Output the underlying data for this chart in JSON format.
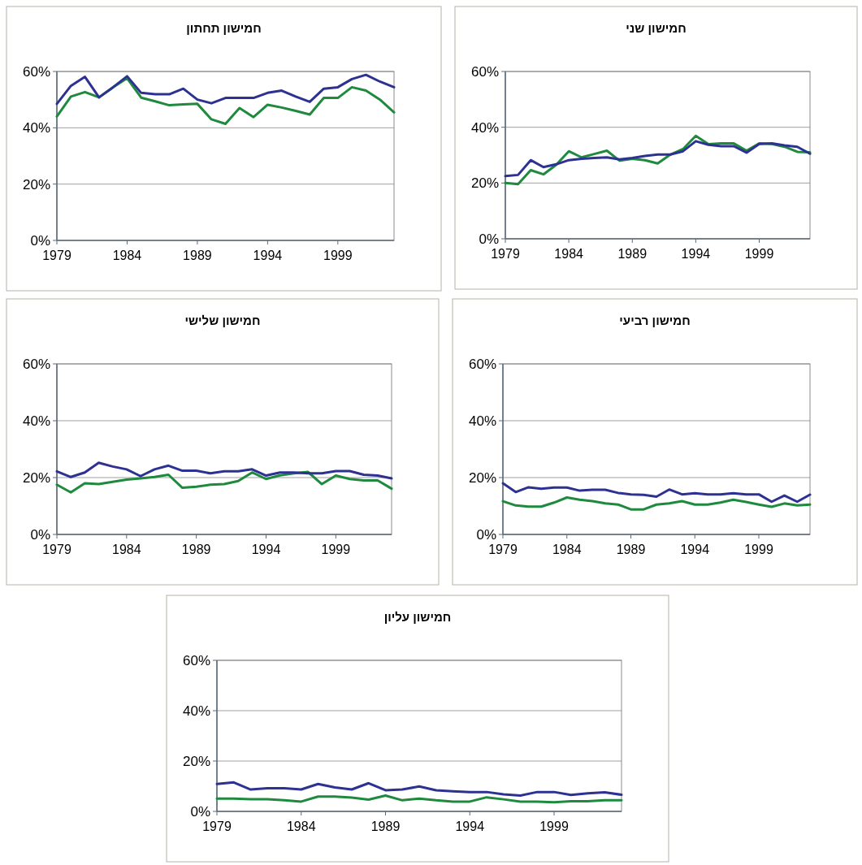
{
  "chart_data": [
    {
      "type": "line",
      "title": "חמישון תחתון",
      "x": [
        1979,
        1980,
        1981,
        1982,
        1983,
        1984,
        1985,
        1986,
        1987,
        1988,
        1989,
        1990,
        1991,
        1992,
        1993,
        1994,
        1995,
        1996,
        1997,
        1998,
        1999,
        2000,
        2001,
        2002,
        2003
      ],
      "xlim": [
        1979,
        2003
      ],
      "xticks": [
        1979,
        1984,
        1989,
        1994,
        1999
      ],
      "ylim": [
        0,
        60
      ],
      "yticks": [
        {
          "value": 0,
          "label": "0%"
        },
        {
          "value": 20,
          "label": "20%"
        },
        {
          "value": 40,
          "label": "40%"
        },
        {
          "value": 60,
          "label": "60%"
        }
      ],
      "grid": "y",
      "series": [
        {
          "color": "#1f8a3e",
          "values": [
            44,
            51.1,
            52.7,
            50.8,
            54.4,
            57.6,
            50.7,
            49.4,
            48,
            48.3,
            48.5,
            43,
            41.4,
            47,
            43.8,
            48.2,
            47.2,
            46,
            44.7,
            50.6,
            50.6,
            54.4,
            53.2,
            50,
            45.5
          ]
        },
        {
          "color": "#2d3192",
          "values": [
            48.5,
            54.9,
            58.1,
            50.8,
            54.4,
            58.3,
            52.4,
            51.9,
            51.9,
            53.9,
            50,
            48.7,
            50.6,
            50.6,
            50.6,
            52.4,
            53.2,
            51.1,
            49.2,
            53.9,
            54.4,
            57.3,
            58.8,
            56.4,
            54.4
          ]
        }
      ]
    },
    {
      "type": "line",
      "title": "חמישון שני",
      "x": [
        1979,
        1980,
        1981,
        1982,
        1983,
        1984,
        1985,
        1986,
        1987,
        1988,
        1989,
        1990,
        1991,
        1992,
        1993,
        1994,
        1995,
        1996,
        1997,
        1998,
        1999,
        2000,
        2001,
        2002,
        2003
      ],
      "xlim": [
        1979,
        2003
      ],
      "xticks": [
        1979,
        1984,
        1989,
        1994,
        1999
      ],
      "ylim": [
        0,
        60
      ],
      "yticks": [
        {
          "value": 0,
          "label": "0%"
        },
        {
          "value": 20,
          "label": "20%"
        },
        {
          "value": 40,
          "label": "40%"
        },
        {
          "value": 60,
          "label": "60%"
        }
      ],
      "grid": "y",
      "series": [
        {
          "color": "#1f8a3e",
          "values": [
            20,
            19.6,
            24.6,
            23.1,
            26.5,
            31.4,
            29.2,
            30.4,
            31.6,
            28,
            28.7,
            28.2,
            27,
            30.2,
            32.2,
            36.9,
            33.9,
            34.2,
            34.2,
            31.6,
            34.2,
            34,
            33,
            31.2,
            31
          ]
        },
        {
          "color": "#2d3192",
          "values": [
            22.5,
            22.9,
            28.2,
            25.7,
            26.7,
            28.2,
            28.7,
            29,
            29.2,
            28.5,
            29,
            29.7,
            30.2,
            30.2,
            31.4,
            35,
            33.7,
            33.2,
            33.2,
            30.9,
            34,
            34.2,
            33.5,
            33,
            30.5
          ]
        }
      ]
    },
    {
      "type": "line",
      "title": "חמישון שלישי",
      "x": [
        1979,
        1980,
        1981,
        1982,
        1983,
        1984,
        1985,
        1986,
        1987,
        1988,
        1989,
        1990,
        1991,
        1992,
        1993,
        1994,
        1995,
        1996,
        1997,
        1998,
        1999,
        2000,
        2001,
        2002,
        2003
      ],
      "xlim": [
        1979,
        2003
      ],
      "xticks": [
        1979,
        1984,
        1989,
        1994,
        1999
      ],
      "ylim": [
        0,
        60
      ],
      "yticks": [
        {
          "value": 0,
          "label": "0%"
        },
        {
          "value": 20,
          "label": "20%"
        },
        {
          "value": 40,
          "label": "40%"
        },
        {
          "value": 60,
          "label": "60%"
        }
      ],
      "grid": "y",
      "series": [
        {
          "color": "#1f8a3e",
          "values": [
            17.5,
            14.8,
            18,
            17.7,
            18.5,
            19.3,
            19.7,
            20.2,
            21,
            16.4,
            16.8,
            17.5,
            17.7,
            18.8,
            21.8,
            19.5,
            20.8,
            21.5,
            22,
            17.7,
            20.7,
            19.5,
            19,
            19,
            16.1
          ]
        },
        {
          "color": "#2d3192",
          "values": [
            22.2,
            20.2,
            21.8,
            25.2,
            23.9,
            22.9,
            20.5,
            22.9,
            24.2,
            22.4,
            22.4,
            21.5,
            22.2,
            22.2,
            22.9,
            20.7,
            21.8,
            21.8,
            21.5,
            21.5,
            22.3,
            22.3,
            21,
            20.7,
            19.7
          ]
        }
      ]
    },
    {
      "type": "line",
      "title": "חמישון רביעי",
      "x": [
        1979,
        1980,
        1981,
        1982,
        1983,
        1984,
        1985,
        1986,
        1987,
        1988,
        1989,
        1990,
        1991,
        1992,
        1993,
        1994,
        1995,
        1996,
        1997,
        1998,
        1999,
        2000,
        2001,
        2002,
        2003
      ],
      "xlim": [
        1979,
        2003
      ],
      "xticks": [
        1979,
        1984,
        1989,
        1994,
        1999
      ],
      "ylim": [
        0,
        60
      ],
      "yticks": [
        {
          "value": 0,
          "label": "0%"
        },
        {
          "value": 20,
          "label": "20%"
        },
        {
          "value": 40,
          "label": "40%"
        },
        {
          "value": 60,
          "label": "60%"
        }
      ],
      "grid": "y",
      "series": [
        {
          "color": "#1f8a3e",
          "values": [
            11.7,
            10.2,
            9.8,
            9.8,
            11.2,
            13,
            12.2,
            11.7,
            10.9,
            10.5,
            8.8,
            8.8,
            10.5,
            10.9,
            11.7,
            10.5,
            10.5,
            11.2,
            12.2,
            11.4,
            10.5,
            9.7,
            10.9,
            10.2,
            10.5
          ]
        },
        {
          "color": "#2d3192",
          "values": [
            18,
            14.9,
            16.6,
            16.1,
            16.5,
            16.5,
            15.4,
            15.7,
            15.7,
            14.6,
            14.1,
            13.9,
            13.3,
            15.8,
            14.1,
            14.5,
            14.1,
            14.1,
            14.5,
            14.1,
            14.1,
            11.5,
            13.7,
            11.5,
            14
          ]
        }
      ]
    },
    {
      "type": "line",
      "title": "חמישון עליון",
      "x": [
        1979,
        1980,
        1981,
        1982,
        1983,
        1984,
        1985,
        1986,
        1987,
        1988,
        1989,
        1990,
        1991,
        1992,
        1993,
        1994,
        1995,
        1996,
        1997,
        1998,
        1999,
        2000,
        2001,
        2002,
        2003
      ],
      "xlim": [
        1979,
        2003
      ],
      "xticks": [
        1979,
        1984,
        1989,
        1994,
        1999
      ],
      "ylim": [
        0,
        60
      ],
      "yticks": [
        {
          "value": 0,
          "label": "0%"
        },
        {
          "value": 20,
          "label": "20%"
        },
        {
          "value": 40,
          "label": "40%"
        },
        {
          "value": 60,
          "label": "60%"
        }
      ],
      "grid": "y",
      "series": [
        {
          "color": "#1f8a3e",
          "values": [
            5.1,
            5.1,
            4.8,
            4.8,
            4.4,
            3.9,
            5.9,
            5.9,
            5.5,
            4.7,
            6.3,
            4.4,
            5.1,
            4.4,
            3.9,
            3.9,
            5.6,
            4.8,
            3.9,
            3.9,
            3.6,
            4,
            4,
            4.4,
            4.4
          ]
        },
        {
          "color": "#2d3192",
          "values": [
            10.9,
            11.5,
            8.7,
            9.2,
            9.2,
            8.7,
            10.9,
            9.5,
            8.7,
            11.2,
            8.4,
            8.7,
            9.9,
            8.4,
            8,
            7.7,
            7.7,
            6.8,
            6.3,
            7.7,
            7.7,
            6.5,
            7.2,
            7.6,
            6.6
          ]
        }
      ]
    }
  ]
}
